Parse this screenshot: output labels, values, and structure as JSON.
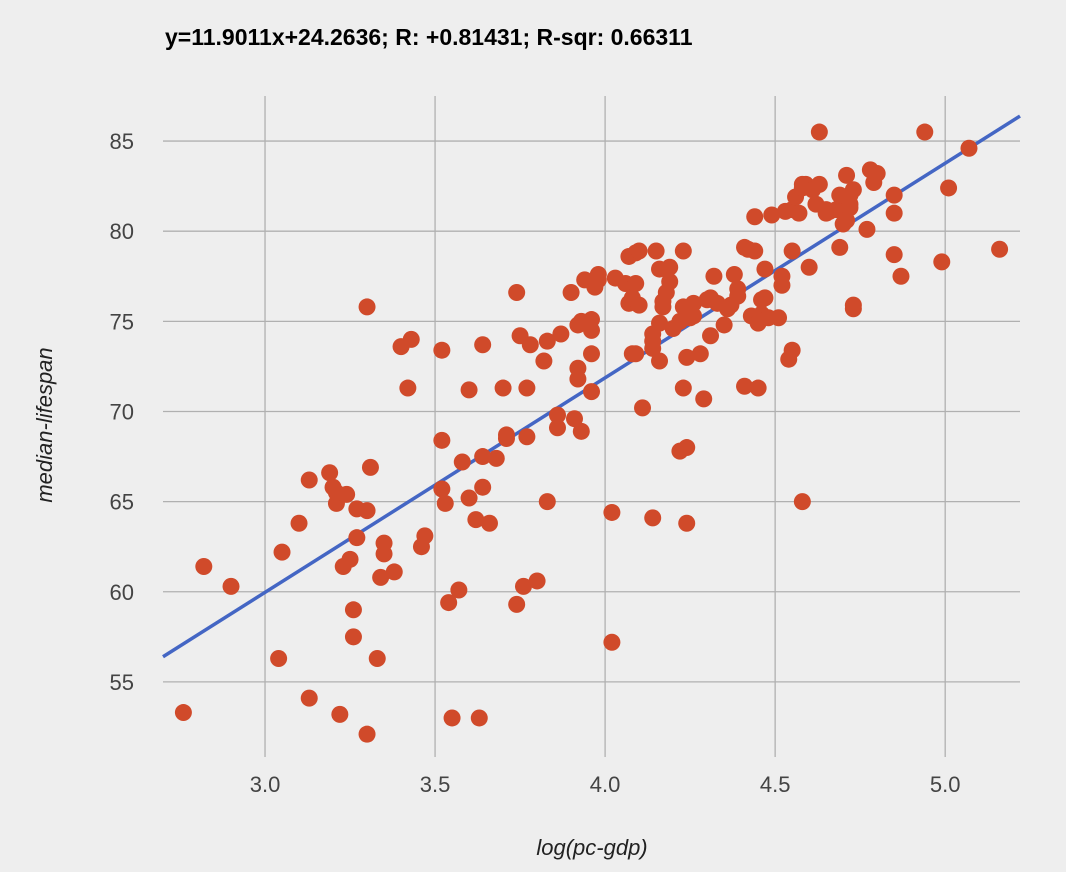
{
  "chart_data": {
    "type": "scatter",
    "title": "y=11.9011x+24.2636; R: +0.81431; R-sqr: 0.66311",
    "xlabel": "log(pc-gdp)",
    "ylabel": "median-lifespan",
    "xlim": [
      2.7,
      5.22
    ],
    "ylim": [
      51.5,
      87.5
    ],
    "x_ticks": [
      "3.0",
      "3.5",
      "4.0",
      "4.5",
      "5.0"
    ],
    "y_ticks": [
      "55",
      "60",
      "65",
      "70",
      "75",
      "80",
      "85"
    ],
    "grid": true,
    "colors": {
      "points": "#d04a2a",
      "trendline": "#4466c4",
      "grid": "#b0b0b0",
      "background": "#eeeeee"
    },
    "trendline": {
      "slope": 11.9011,
      "intercept": 24.2636,
      "x_range": [
        2.7,
        5.22
      ]
    },
    "points": [
      [
        2.76,
        53.3
      ],
      [
        2.82,
        61.4
      ],
      [
        2.9,
        60.3
      ],
      [
        3.04,
        56.3
      ],
      [
        3.05,
        62.2
      ],
      [
        3.1,
        63.8
      ],
      [
        3.13,
        54.1
      ],
      [
        3.13,
        66.2
      ],
      [
        3.19,
        66.6
      ],
      [
        3.2,
        65.8
      ],
      [
        3.21,
        64.9
      ],
      [
        3.21,
        65.5
      ],
      [
        3.22,
        53.2
      ],
      [
        3.23,
        61.4
      ],
      [
        3.24,
        65.4
      ],
      [
        3.25,
        61.8
      ],
      [
        3.26,
        57.5
      ],
      [
        3.26,
        59.0
      ],
      [
        3.27,
        63.0
      ],
      [
        3.27,
        64.6
      ],
      [
        3.3,
        52.1
      ],
      [
        3.3,
        64.5
      ],
      [
        3.3,
        75.8
      ],
      [
        3.31,
        66.9
      ],
      [
        3.33,
        56.3
      ],
      [
        3.34,
        60.8
      ],
      [
        3.35,
        62.1
      ],
      [
        3.35,
        62.7
      ],
      [
        3.38,
        61.1
      ],
      [
        3.4,
        73.6
      ],
      [
        3.42,
        71.3
      ],
      [
        3.43,
        74.0
      ],
      [
        3.46,
        62.5
      ],
      [
        3.47,
        63.1
      ],
      [
        3.52,
        65.7
      ],
      [
        3.52,
        68.4
      ],
      [
        3.52,
        73.4
      ],
      [
        3.53,
        64.9
      ],
      [
        3.54,
        59.4
      ],
      [
        3.55,
        53.0
      ],
      [
        3.57,
        60.1
      ],
      [
        3.58,
        67.2
      ],
      [
        3.6,
        65.2
      ],
      [
        3.6,
        71.2
      ],
      [
        3.62,
        64.0
      ],
      [
        3.63,
        53.0
      ],
      [
        3.64,
        65.8
      ],
      [
        3.64,
        67.5
      ],
      [
        3.64,
        73.7
      ],
      [
        3.66,
        63.8
      ],
      [
        3.68,
        67.4
      ],
      [
        3.7,
        71.3
      ],
      [
        3.71,
        68.5
      ],
      [
        3.71,
        68.7
      ],
      [
        3.74,
        59.3
      ],
      [
        3.74,
        76.6
      ],
      [
        3.75,
        74.2
      ],
      [
        3.76,
        60.3
      ],
      [
        3.77,
        68.6
      ],
      [
        3.77,
        71.3
      ],
      [
        3.78,
        73.7
      ],
      [
        3.8,
        60.6
      ],
      [
        3.82,
        72.8
      ],
      [
        3.83,
        65.0
      ],
      [
        3.83,
        73.9
      ],
      [
        3.86,
        69.1
      ],
      [
        3.86,
        69.8
      ],
      [
        3.87,
        74.3
      ],
      [
        3.9,
        76.6
      ],
      [
        3.91,
        69.6
      ],
      [
        3.92,
        71.8
      ],
      [
        3.92,
        72.4
      ],
      [
        3.92,
        74.8
      ],
      [
        3.93,
        68.9
      ],
      [
        3.93,
        75.0
      ],
      [
        3.94,
        77.3
      ],
      [
        3.96,
        71.1
      ],
      [
        3.96,
        73.2
      ],
      [
        3.96,
        74.5
      ],
      [
        3.96,
        75.1
      ],
      [
        3.97,
        76.9
      ],
      [
        3.98,
        77.3
      ],
      [
        3.98,
        77.6
      ],
      [
        4.02,
        57.2
      ],
      [
        4.02,
        64.4
      ],
      [
        4.03,
        77.4
      ],
      [
        4.06,
        77.1
      ],
      [
        4.07,
        76.0
      ],
      [
        4.07,
        78.6
      ],
      [
        4.08,
        73.2
      ],
      [
        4.08,
        76.3
      ],
      [
        4.09,
        73.2
      ],
      [
        4.09,
        77.1
      ],
      [
        4.09,
        78.8
      ],
      [
        4.1,
        75.9
      ],
      [
        4.1,
        78.9
      ],
      [
        4.11,
        70.2
      ],
      [
        4.14,
        73.5
      ],
      [
        4.14,
        73.9
      ],
      [
        4.14,
        74.3
      ],
      [
        4.14,
        64.1
      ],
      [
        4.15,
        78.9
      ],
      [
        4.16,
        72.8
      ],
      [
        4.16,
        74.9
      ],
      [
        4.16,
        77.9
      ],
      [
        4.17,
        75.8
      ],
      [
        4.17,
        76.1
      ],
      [
        4.18,
        76.6
      ],
      [
        4.19,
        77.2
      ],
      [
        4.19,
        78.0
      ],
      [
        4.2,
        74.6
      ],
      [
        4.22,
        67.8
      ],
      [
        4.22,
        75.0
      ],
      [
        4.23,
        71.3
      ],
      [
        4.23,
        75.8
      ],
      [
        4.23,
        78.9
      ],
      [
        4.24,
        63.8
      ],
      [
        4.24,
        73.0
      ],
      [
        4.24,
        68.0
      ],
      [
        4.25,
        75.2
      ],
      [
        4.25,
        75.8
      ],
      [
        4.26,
        75.3
      ],
      [
        4.26,
        76.0
      ],
      [
        4.28,
        73.2
      ],
      [
        4.29,
        70.7
      ],
      [
        4.3,
        76.2
      ],
      [
        4.31,
        74.2
      ],
      [
        4.31,
        76.3
      ],
      [
        4.32,
        77.5
      ],
      [
        4.33,
        76.0
      ],
      [
        4.35,
        74.8
      ],
      [
        4.36,
        75.7
      ],
      [
        4.37,
        75.9
      ],
      [
        4.38,
        77.6
      ],
      [
        4.39,
        76.4
      ],
      [
        4.39,
        76.8
      ],
      [
        4.41,
        71.4
      ],
      [
        4.41,
        79.1
      ],
      [
        4.42,
        79.0
      ],
      [
        4.43,
        75.3
      ],
      [
        4.44,
        78.9
      ],
      [
        4.44,
        80.8
      ],
      [
        4.45,
        71.3
      ],
      [
        4.45,
        74.9
      ],
      [
        4.46,
        75.4
      ],
      [
        4.46,
        76.2
      ],
      [
        4.47,
        76.3
      ],
      [
        4.47,
        77.9
      ],
      [
        4.48,
        75.2
      ],
      [
        4.49,
        80.9
      ],
      [
        4.51,
        75.2
      ],
      [
        4.52,
        77.5
      ],
      [
        4.52,
        77.0
      ],
      [
        4.53,
        81.1
      ],
      [
        4.54,
        72.9
      ],
      [
        4.55,
        73.4
      ],
      [
        4.55,
        78.9
      ],
      [
        4.55,
        81.2
      ],
      [
        4.56,
        81.9
      ],
      [
        4.57,
        81.0
      ],
      [
        4.58,
        65.0
      ],
      [
        4.58,
        82.4
      ],
      [
        4.58,
        82.6
      ],
      [
        4.59,
        82.6
      ],
      [
        4.6,
        78.0
      ],
      [
        4.61,
        82.3
      ],
      [
        4.62,
        81.5
      ],
      [
        4.63,
        82.6
      ],
      [
        4.63,
        85.5
      ],
      [
        4.65,
        81.0
      ],
      [
        4.65,
        81.2
      ],
      [
        4.66,
        81.1
      ],
      [
        4.68,
        81.2
      ],
      [
        4.69,
        79.1
      ],
      [
        4.69,
        82.0
      ],
      [
        4.7,
        80.4
      ],
      [
        4.7,
        81.1
      ],
      [
        4.71,
        80.6
      ],
      [
        4.71,
        81.9
      ],
      [
        4.71,
        83.1
      ],
      [
        4.72,
        81.5
      ],
      [
        4.72,
        82.0
      ],
      [
        4.72,
        81.3
      ],
      [
        4.73,
        82.3
      ],
      [
        4.73,
        75.9
      ],
      [
        4.73,
        75.7
      ],
      [
        4.77,
        80.1
      ],
      [
        4.78,
        83.4
      ],
      [
        4.79,
        82.7
      ],
      [
        4.8,
        83.2
      ],
      [
        4.85,
        78.7
      ],
      [
        4.85,
        81.0
      ],
      [
        4.85,
        82.0
      ],
      [
        4.87,
        77.5
      ],
      [
        4.94,
        85.5
      ],
      [
        4.99,
        78.3
      ],
      [
        5.01,
        82.4
      ],
      [
        5.07,
        84.6
      ],
      [
        5.16,
        79.0
      ]
    ]
  }
}
